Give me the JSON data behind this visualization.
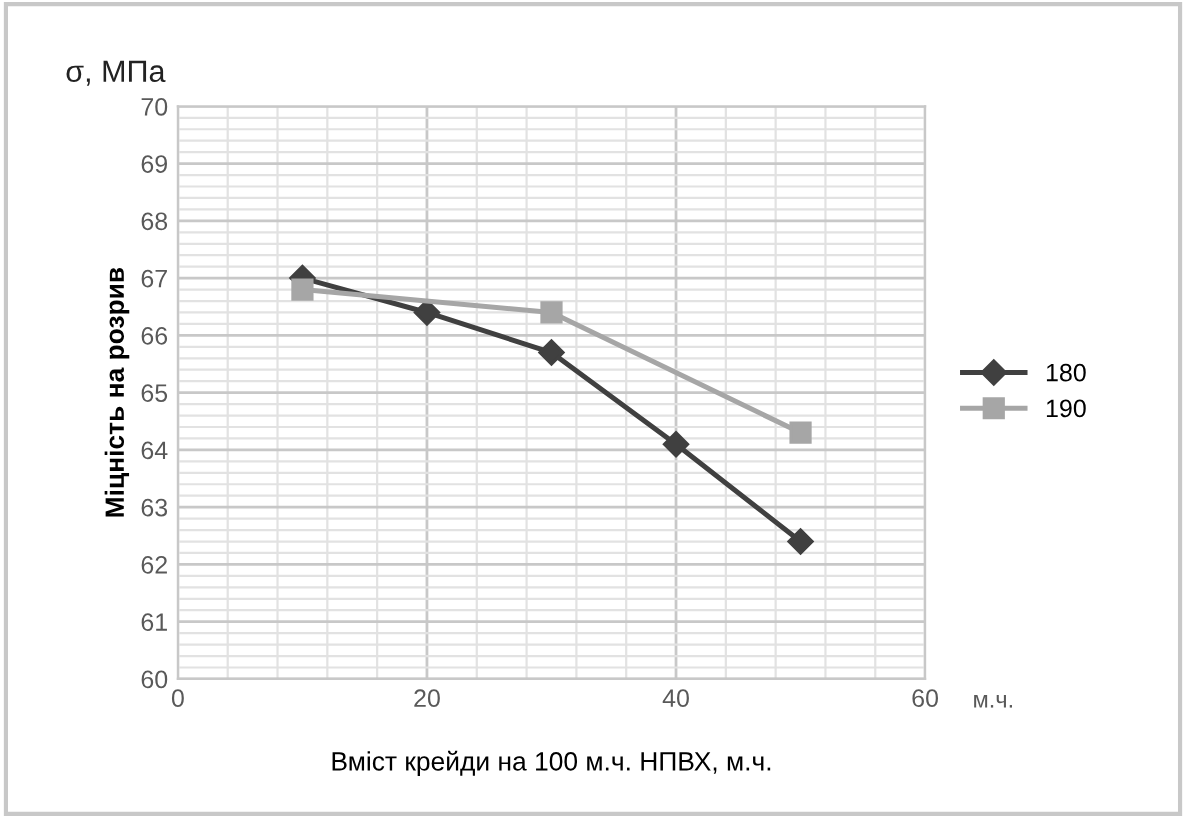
{
  "chart_data": {
    "type": "line",
    "xlabel": "Вміст крейди на 100 м.ч. НПВХ, м.ч.",
    "ylabel": "Міцність на розрив",
    "annotations": [
      "σ, МПа",
      "м.ч."
    ],
    "series": [
      {
        "name": "180",
        "color": "#404040",
        "marker": "diamond",
        "x": [
          10,
          20,
          30,
          40,
          50
        ],
        "values": [
          67.0,
          66.4,
          65.7,
          64.1,
          62.4
        ]
      },
      {
        "name": "190",
        "color": "#a6a6a6",
        "marker": "square",
        "x": [
          10,
          30,
          50
        ],
        "values": [
          66.8,
          66.4,
          64.3
        ]
      }
    ],
    "xlim": [
      0,
      60
    ],
    "xticks": [
      0,
      20,
      40,
      60
    ],
    "ylim": [
      60,
      70
    ],
    "yticks": [
      60,
      61,
      62,
      63,
      64,
      65,
      66,
      67,
      68,
      69,
      70
    ],
    "grid": true,
    "legend": "right",
    "line_style": "solid"
  }
}
